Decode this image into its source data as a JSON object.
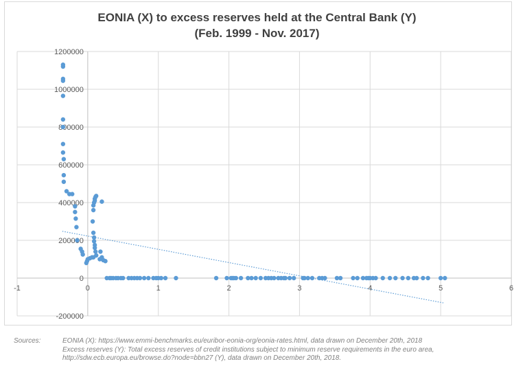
{
  "chart_data": {
    "type": "scatter",
    "title": "EONIA (X) to excess reserves held at the Central Bank (Y)",
    "subtitle": "(Feb. 1999 - Nov. 2017)",
    "xlim": [
      -1,
      6
    ],
    "ylim": [
      -200000,
      1200000
    ],
    "x_ticks": [
      -1,
      0,
      1,
      2,
      3,
      4,
      5,
      6
    ],
    "y_ticks": [
      -200000,
      0,
      200000,
      400000,
      600000,
      800000,
      1000000,
      1200000
    ],
    "grid": true,
    "marker_color": "#5b9bd5",
    "trendline": {
      "type": "linear",
      "style": "dotted",
      "color": "#5b9bd5",
      "points": [
        [
          -0.36,
          248000
        ],
        [
          5.05,
          -132000
        ]
      ]
    },
    "points": [
      [
        -0.35,
        1130000
      ],
      [
        -0.35,
        1120000
      ],
      [
        -0.35,
        1055000
      ],
      [
        -0.35,
        1045000
      ],
      [
        -0.35,
        965000
      ],
      [
        -0.35,
        840000
      ],
      [
        -0.35,
        800000
      ],
      [
        -0.35,
        710000
      ],
      [
        -0.35,
        665000
      ],
      [
        -0.34,
        630000
      ],
      [
        -0.34,
        545000
      ],
      [
        -0.34,
        510000
      ],
      [
        -0.3,
        460000
      ],
      [
        -0.26,
        445000
      ],
      [
        -0.22,
        445000
      ],
      [
        -0.18,
        380000
      ],
      [
        -0.18,
        350000
      ],
      [
        -0.17,
        315000
      ],
      [
        -0.16,
        270000
      ],
      [
        -0.15,
        200000
      ],
      [
        -0.1,
        155000
      ],
      [
        -0.08,
        140000
      ],
      [
        -0.07,
        125000
      ],
      [
        -0.02,
        80000
      ],
      [
        -0.01,
        90000
      ],
      [
        0.0,
        100000
      ],
      [
        0.03,
        105000
      ],
      [
        0.06,
        110000
      ],
      [
        0.08,
        110000
      ],
      [
        0.07,
        300000
      ],
      [
        0.08,
        360000
      ],
      [
        0.08,
        385000
      ],
      [
        0.09,
        400000
      ],
      [
        0.1,
        410000
      ],
      [
        0.1,
        420000
      ],
      [
        0.11,
        430000
      ],
      [
        0.12,
        435000
      ],
      [
        0.08,
        240000
      ],
      [
        0.09,
        215000
      ],
      [
        0.09,
        195000
      ],
      [
        0.1,
        175000
      ],
      [
        0.1,
        160000
      ],
      [
        0.11,
        140000
      ],
      [
        0.12,
        120000
      ],
      [
        0.17,
        100000
      ],
      [
        0.18,
        140000
      ],
      [
        0.2,
        110000
      ],
      [
        0.22,
        95000
      ],
      [
        0.25,
        90000
      ],
      [
        0.2,
        405000
      ],
      [
        0.27,
        0
      ],
      [
        0.31,
        0
      ],
      [
        0.33,
        0
      ],
      [
        0.36,
        0
      ],
      [
        0.4,
        0
      ],
      [
        0.43,
        0
      ],
      [
        0.47,
        0
      ],
      [
        0.5,
        0
      ],
      [
        0.58,
        0
      ],
      [
        0.62,
        0
      ],
      [
        0.66,
        0
      ],
      [
        0.7,
        0
      ],
      [
        0.74,
        0
      ],
      [
        0.8,
        0
      ],
      [
        0.86,
        0
      ],
      [
        0.93,
        0
      ],
      [
        0.97,
        0
      ],
      [
        1.0,
        0
      ],
      [
        1.04,
        0
      ],
      [
        1.1,
        0
      ],
      [
        1.25,
        0
      ],
      [
        1.82,
        0
      ],
      [
        1.97,
        0
      ],
      [
        2.03,
        0
      ],
      [
        2.05,
        0
      ],
      [
        2.07,
        0
      ],
      [
        2.1,
        0
      ],
      [
        2.17,
        0
      ],
      [
        2.27,
        0
      ],
      [
        2.32,
        0
      ],
      [
        2.38,
        0
      ],
      [
        2.45,
        0
      ],
      [
        2.52,
        0
      ],
      [
        2.56,
        0
      ],
      [
        2.6,
        0
      ],
      [
        2.64,
        0
      ],
      [
        2.7,
        0
      ],
      [
        2.74,
        0
      ],
      [
        2.78,
        0
      ],
      [
        2.8,
        0
      ],
      [
        2.86,
        0
      ],
      [
        2.92,
        0
      ],
      [
        3.05,
        0
      ],
      [
        3.07,
        0
      ],
      [
        3.12,
        0
      ],
      [
        3.18,
        0
      ],
      [
        3.28,
        0
      ],
      [
        3.32,
        0
      ],
      [
        3.36,
        0
      ],
      [
        3.53,
        0
      ],
      [
        3.58,
        0
      ],
      [
        3.76,
        0
      ],
      [
        3.82,
        0
      ],
      [
        3.9,
        0
      ],
      [
        3.95,
        0
      ],
      [
        3.98,
        0
      ],
      [
        4.0,
        0
      ],
      [
        4.04,
        0
      ],
      [
        4.08,
        0
      ],
      [
        4.18,
        0
      ],
      [
        4.28,
        0
      ],
      [
        4.36,
        0
      ],
      [
        4.46,
        0
      ],
      [
        4.54,
        0
      ],
      [
        4.62,
        0
      ],
      [
        4.66,
        0
      ],
      [
        4.75,
        0
      ],
      [
        4.82,
        0
      ],
      [
        5.0,
        0
      ],
      [
        5.06,
        0
      ]
    ]
  },
  "sources": {
    "label": "Sources:",
    "lines": [
      "EONIA (X): https://www.emmi-benchmarks.eu/euribor-eonia-org/eonia-rates.html, data drawn on December 20th, 2018",
      "Excess reserves (Y): Total excess reserves of credit institutions subject to minimum  reserve requirements in the euro area,",
      "http://sdw.ecb.europa.eu/browse.do?node=bbn27 (Y), data drawn on December 20th, 2018."
    ]
  }
}
